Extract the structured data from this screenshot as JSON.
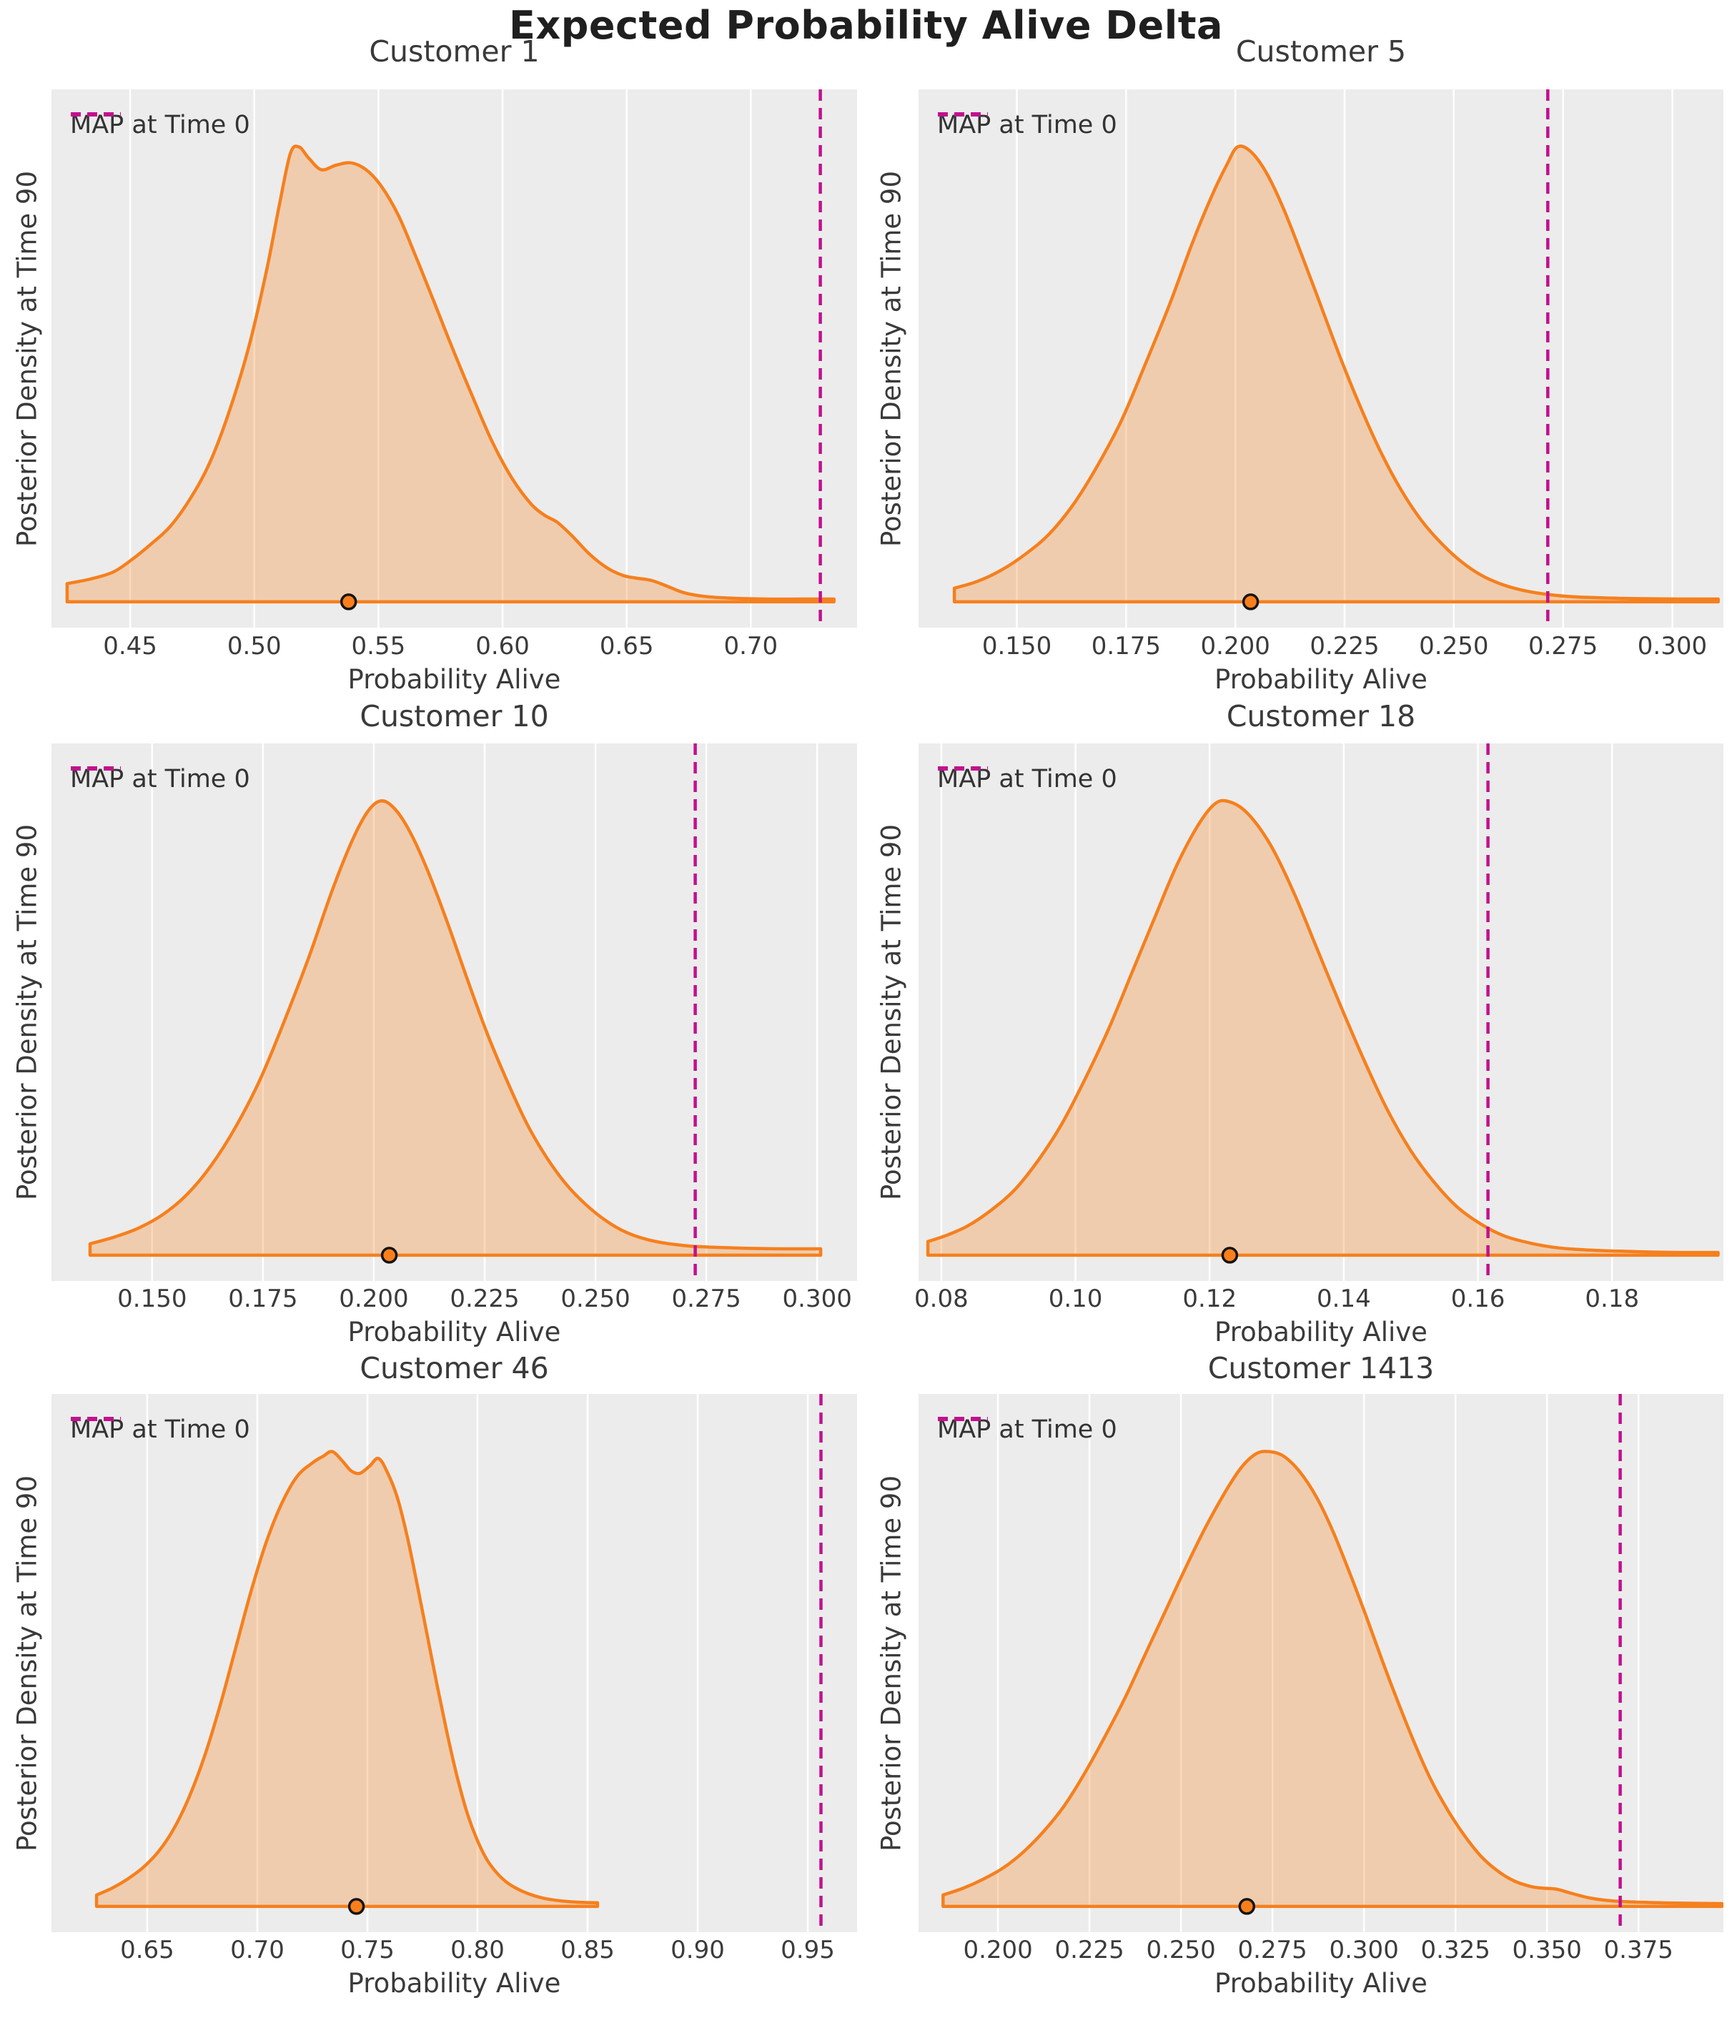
{
  "figure": {
    "suptitle": "Expected Probability Alive Delta",
    "xlabel": "Probability Alive",
    "ylabel": "Posterior Density at Time 90",
    "legend_label": "MAP at Time 0"
  },
  "colors": {
    "kde_line": "#f5801e",
    "kde_fill": "rgba(245,128,30,0.30)",
    "map_line": "#c2108e",
    "plot_bg": "#ececec",
    "gridline": "#ffffff",
    "dot_fill": "#f97f1c",
    "dot_edge": "#141414",
    "text": "#3a3a3a",
    "suptitle_color": "#1f1f1f"
  },
  "chart_data": [
    {
      "type": "area",
      "title": "Customer 1",
      "legend": [
        "MAP at Time 0"
      ],
      "xlim": [
        0.4183,
        0.7428
      ],
      "x_ticks": [
        0.45,
        0.5,
        0.55,
        0.6,
        0.65,
        0.7
      ],
      "tick_labels": [
        "0.45",
        "0.50",
        "0.55",
        "0.60",
        "0.65",
        "0.70"
      ],
      "map_at_time0": 0.728,
      "expected_value_dot": 0.538,
      "grid": "vertical",
      "legend_position": "upper-left",
      "curve": {
        "x": [
          0.4246,
          0.434,
          0.443,
          0.45,
          0.458,
          0.466,
          0.474,
          0.482,
          0.49,
          0.498,
          0.505,
          0.51,
          0.5145,
          0.518,
          0.522,
          0.527,
          0.533,
          0.539,
          0.545,
          0.551,
          0.558,
          0.565,
          0.572,
          0.58,
          0.588,
          0.596,
          0.604,
          0.6115,
          0.617,
          0.622,
          0.628,
          0.635,
          0.642,
          0.6485,
          0.654,
          0.66,
          0.666,
          0.673,
          0.681,
          0.692,
          0.706,
          0.72,
          0.7335
        ],
        "density": [
          0.04,
          0.05,
          0.065,
          0.09,
          0.125,
          0.165,
          0.225,
          0.305,
          0.42,
          0.565,
          0.73,
          0.87,
          0.985,
          1.0,
          0.975,
          0.95,
          0.96,
          0.965,
          0.95,
          0.915,
          0.85,
          0.76,
          0.665,
          0.555,
          0.45,
          0.35,
          0.27,
          0.215,
          0.19,
          0.175,
          0.145,
          0.105,
          0.075,
          0.058,
          0.052,
          0.047,
          0.035,
          0.02,
          0.012,
          0.008,
          0.006,
          0.006,
          0.006
        ]
      }
    },
    {
      "type": "area",
      "title": "Customer 5",
      "legend": [
        "MAP at Time 0"
      ],
      "xlim": [
        0.1275,
        0.3117
      ],
      "x_ticks": [
        0.15,
        0.175,
        0.2,
        0.225,
        0.25,
        0.275,
        0.3
      ],
      "tick_labels": [
        "0.150",
        "0.175",
        "0.200",
        "0.225",
        "0.250",
        "0.275",
        "0.300"
      ],
      "map_at_time0": 0.2715,
      "expected_value_dot": 0.2035,
      "grid": "vertical",
      "legend_position": "upper-left",
      "curve": {
        "x": [
          0.1357,
          0.141,
          0.1465,
          0.152,
          0.1575,
          0.163,
          0.1685,
          0.174,
          0.1795,
          0.185,
          0.19,
          0.1945,
          0.198,
          0.2005,
          0.2035,
          0.207,
          0.211,
          0.2155,
          0.22,
          0.2245,
          0.229,
          0.2335,
          0.238,
          0.2425,
          0.247,
          0.2515,
          0.256,
          0.2605,
          0.265,
          0.27,
          0.276,
          0.283,
          0.292,
          0.302,
          0.3105
        ],
        "density": [
          0.03,
          0.045,
          0.07,
          0.105,
          0.15,
          0.215,
          0.3,
          0.4,
          0.525,
          0.655,
          0.785,
          0.89,
          0.96,
          1.0,
          0.99,
          0.945,
          0.865,
          0.755,
          0.64,
          0.525,
          0.42,
          0.325,
          0.245,
          0.18,
          0.13,
          0.09,
          0.06,
          0.04,
          0.027,
          0.018,
          0.012,
          0.009,
          0.007,
          0.006,
          0.006
        ]
      }
    },
    {
      "type": "area",
      "title": "Customer 10",
      "legend": [
        "MAP at Time 0"
      ],
      "xlim": [
        0.1273,
        0.309
      ],
      "x_ticks": [
        0.15,
        0.175,
        0.2,
        0.225,
        0.25,
        0.275,
        0.3
      ],
      "tick_labels": [
        "0.150",
        "0.175",
        "0.200",
        "0.225",
        "0.250",
        "0.275",
        "0.300"
      ],
      "map_at_time0": 0.2725,
      "expected_value_dot": 0.2035,
      "grid": "vertical",
      "legend_position": "upper-left",
      "curve": {
        "x": [
          0.136,
          0.1415,
          0.147,
          0.1525,
          0.158,
          0.1635,
          0.169,
          0.1745,
          0.18,
          0.1855,
          0.1905,
          0.195,
          0.1985,
          0.2015,
          0.2045,
          0.208,
          0.212,
          0.2165,
          0.221,
          0.2255,
          0.23,
          0.2345,
          0.239,
          0.2435,
          0.248,
          0.2525,
          0.257,
          0.2615,
          0.266,
          0.2715,
          0.278,
          0.285,
          0.293,
          0.3008
        ],
        "density": [
          0.025,
          0.04,
          0.06,
          0.09,
          0.135,
          0.2,
          0.285,
          0.39,
          0.52,
          0.66,
          0.8,
          0.91,
          0.975,
          1.0,
          0.985,
          0.935,
          0.85,
          0.735,
          0.61,
          0.49,
          0.385,
          0.29,
          0.215,
          0.155,
          0.11,
          0.075,
          0.05,
          0.035,
          0.026,
          0.02,
          0.017,
          0.015,
          0.014,
          0.014
        ]
      }
    },
    {
      "type": "area",
      "title": "Customer 18",
      "legend": [
        "MAP at Time 0"
      ],
      "xlim": [
        0.0766,
        0.1966
      ],
      "x_ticks": [
        0.08,
        0.1,
        0.12,
        0.14,
        0.16,
        0.18
      ],
      "tick_labels": [
        "0.08",
        "0.10",
        "0.12",
        "0.14",
        "0.16",
        "0.18"
      ],
      "map_at_time0": 0.1615,
      "expected_value_dot": 0.123,
      "grid": "vertical",
      "legend_position": "upper-left",
      "curve": {
        "x": [
          0.078,
          0.081,
          0.084,
          0.0875,
          0.091,
          0.0945,
          0.098,
          0.1015,
          0.105,
          0.1085,
          0.112,
          0.115,
          0.118,
          0.1205,
          0.1225,
          0.1255,
          0.129,
          0.1325,
          0.136,
          0.1395,
          0.143,
          0.1465,
          0.15,
          0.1535,
          0.157,
          0.1605,
          0.164,
          0.168,
          0.172,
          0.177,
          0.183,
          0.19,
          0.1958
        ],
        "density": [
          0.03,
          0.045,
          0.065,
          0.1,
          0.145,
          0.21,
          0.29,
          0.39,
          0.5,
          0.625,
          0.75,
          0.855,
          0.94,
          0.99,
          1.0,
          0.975,
          0.905,
          0.8,
          0.675,
          0.55,
          0.43,
          0.32,
          0.23,
          0.16,
          0.105,
          0.068,
          0.042,
          0.026,
          0.016,
          0.011,
          0.008,
          0.006,
          0.006
        ]
      }
    },
    {
      "type": "area",
      "title": "Customer 46",
      "legend": [
        "MAP at Time 0"
      ],
      "xlim": [
        0.6065,
        0.9724
      ],
      "x_ticks": [
        0.65,
        0.7,
        0.75,
        0.8,
        0.85,
        0.9,
        0.95
      ],
      "tick_labels": [
        "0.65",
        "0.70",
        "0.75",
        "0.80",
        "0.85",
        "0.90",
        "0.95"
      ],
      "map_at_time0": 0.956,
      "expected_value_dot": 0.745,
      "grid": "vertical",
      "legend_position": "upper-left",
      "curve": {
        "x": [
          0.627,
          0.634,
          0.641,
          0.648,
          0.655,
          0.662,
          0.669,
          0.676,
          0.683,
          0.69,
          0.697,
          0.704,
          0.711,
          0.718,
          0.725,
          0.73,
          0.734,
          0.7385,
          0.7425,
          0.7465,
          0.751,
          0.755,
          0.759,
          0.7635,
          0.768,
          0.7725,
          0.777,
          0.7815,
          0.786,
          0.7905,
          0.795,
          0.7995,
          0.804,
          0.8085,
          0.813,
          0.8175,
          0.823,
          0.83,
          0.838,
          0.8465,
          0.8545
        ],
        "density": [
          0.025,
          0.04,
          0.06,
          0.085,
          0.12,
          0.17,
          0.24,
          0.33,
          0.44,
          0.565,
          0.69,
          0.8,
          0.885,
          0.945,
          0.975,
          0.99,
          1.0,
          0.98,
          0.958,
          0.952,
          0.968,
          0.985,
          0.955,
          0.9,
          0.815,
          0.71,
          0.6,
          0.49,
          0.385,
          0.29,
          0.21,
          0.15,
          0.105,
          0.075,
          0.054,
          0.04,
          0.028,
          0.018,
          0.012,
          0.009,
          0.008
        ]
      }
    },
    {
      "type": "area",
      "title": "Customer 1413",
      "legend": [
        "MAP at Time 0"
      ],
      "xlim": [
        0.1783,
        0.3982
      ],
      "x_ticks": [
        0.2,
        0.225,
        0.25,
        0.275,
        0.3,
        0.325,
        0.35,
        0.375
      ],
      "tick_labels": [
        "0.200",
        "0.225",
        "0.250",
        "0.275",
        "0.300",
        "0.325",
        "0.350",
        "0.375"
      ],
      "map_at_time0": 0.37,
      "expected_value_dot": 0.268,
      "grid": "vertical",
      "legend_position": "upper-left",
      "curve": {
        "x": [
          0.185,
          0.1905,
          0.196,
          0.2015,
          0.207,
          0.2125,
          0.218,
          0.2235,
          0.229,
          0.2345,
          0.24,
          0.2455,
          0.251,
          0.2565,
          0.262,
          0.2665,
          0.2705,
          0.274,
          0.278,
          0.2825,
          0.287,
          0.2915,
          0.296,
          0.3005,
          0.305,
          0.3095,
          0.314,
          0.3185,
          0.323,
          0.3275,
          0.332,
          0.3365,
          0.341,
          0.3455,
          0.349,
          0.3525,
          0.357,
          0.362,
          0.368,
          0.376,
          0.387,
          0.3978
        ],
        "density": [
          0.025,
          0.04,
          0.06,
          0.085,
          0.12,
          0.165,
          0.22,
          0.29,
          0.37,
          0.455,
          0.55,
          0.645,
          0.74,
          0.83,
          0.91,
          0.965,
          0.995,
          1.0,
          0.99,
          0.955,
          0.9,
          0.825,
          0.735,
          0.64,
          0.54,
          0.445,
          0.355,
          0.275,
          0.21,
          0.155,
          0.11,
          0.078,
          0.056,
          0.044,
          0.04,
          0.038,
          0.028,
          0.018,
          0.012,
          0.009,
          0.007,
          0.006
        ]
      }
    }
  ]
}
